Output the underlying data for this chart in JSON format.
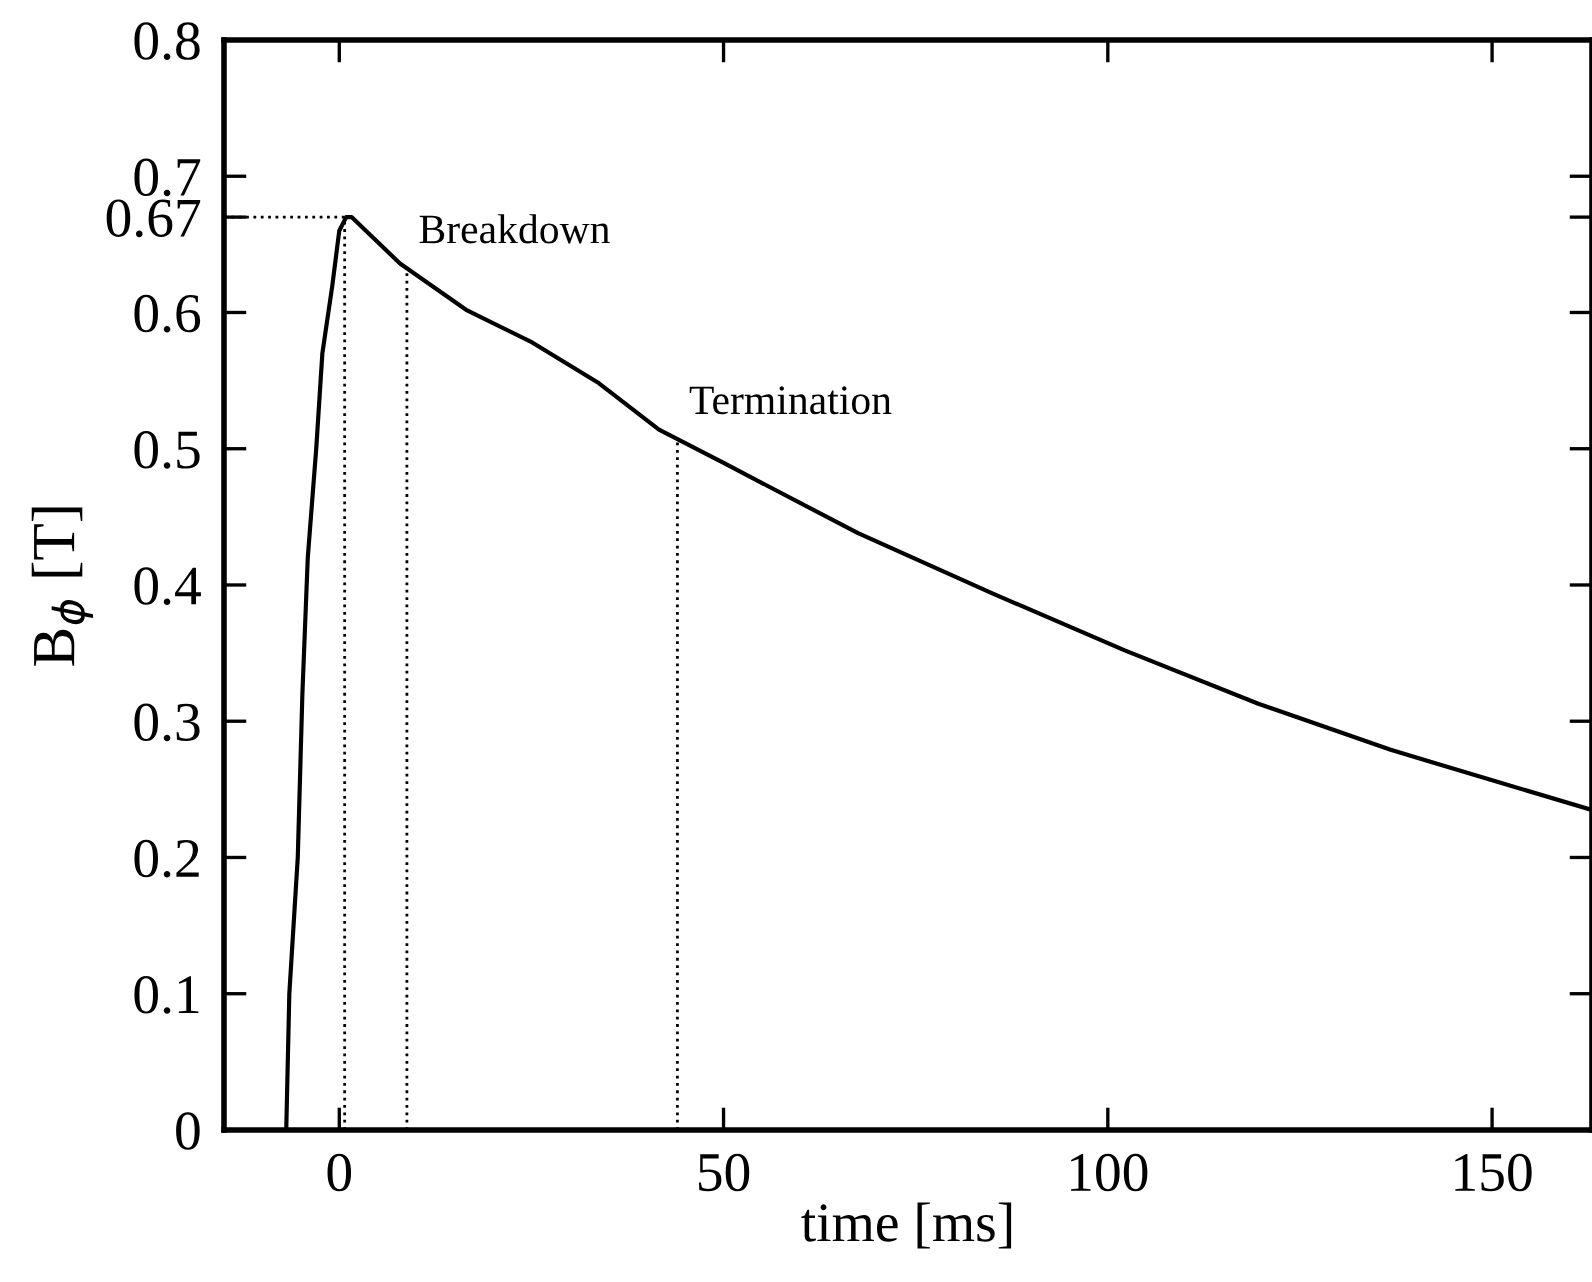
{
  "chart_data": {
    "type": "line",
    "xlabel": "time [ms]",
    "ylabel": "B$_{ϕ}$ [T]",
    "xlim": [
      -15,
      163
    ],
    "ylim": [
      0,
      0.8
    ],
    "xticks": [
      0,
      50,
      100,
      150
    ],
    "yticks": [
      0,
      0.1,
      0.2,
      0.3,
      0.4,
      0.5,
      0.6,
      {
        "value": 0.67,
        "label": "0.67"
      },
      0.7,
      0.8
    ],
    "grid": false,
    "marker": "none",
    "line_style": "solid",
    "series": [
      {
        "color": "#000000",
        "x": [
          -6.9,
          -6.5,
          -5.4,
          -4.8,
          -4.1,
          -3.0,
          -2.2,
          -0.9,
          0,
          0.9,
          1.6,
          7.9,
          16.5,
          25.1,
          33.8,
          41.6,
          50.2,
          67.5,
          84.9,
          102.2,
          119.5,
          136.8,
          149.8,
          162.9
        ],
        "values": [
          0,
          0.1,
          0.2,
          0.32,
          0.42,
          0.5,
          0.57,
          0.62,
          0.66,
          0.67,
          0.67,
          0.636,
          0.602,
          0.578,
          0.548,
          0.514,
          0.489,
          0.438,
          0.394,
          0.352,
          0.313,
          0.279,
          0.257,
          0.235
        ]
      }
    ],
    "ref_lines": [
      {
        "axis": "y",
        "value": 0.67,
        "line_style": "dotted"
      },
      {
        "axis": "x",
        "value": 0.7,
        "line_style": "dotted"
      },
      {
        "axis": "x",
        "value": 8.8,
        "label": "Breakdown",
        "line_style": "dotted"
      },
      {
        "axis": "x",
        "value": 44,
        "label": "Termination",
        "line_style": "dotted"
      }
    ]
  }
}
